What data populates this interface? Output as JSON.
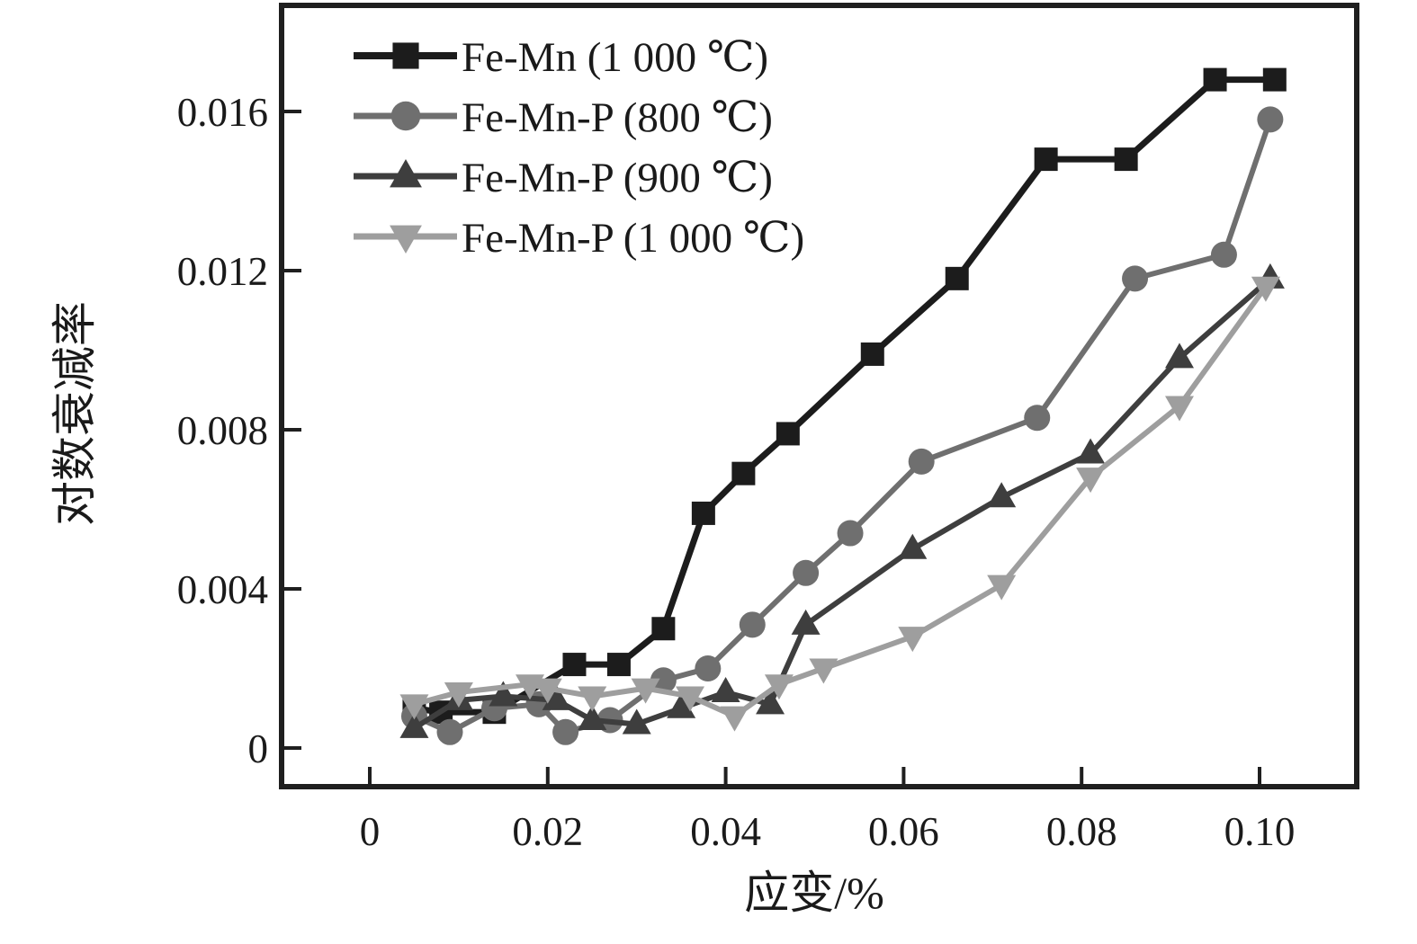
{
  "chart_data": {
    "type": "line",
    "title": "",
    "xlabel": "应变/%",
    "ylabel": "对数衰减率",
    "xlim": [
      -0.01,
      0.111
    ],
    "ylim": [
      -0.001,
      0.0187
    ],
    "grid": false,
    "legend_position": "top-left-inside",
    "xticks": {
      "values": [
        0,
        0.02,
        0.04,
        0.06,
        0.08,
        0.1
      ],
      "labels": [
        "0",
        "0.02",
        "0.04",
        "0.06",
        "0.08",
        "0.10"
      ]
    },
    "yticks": {
      "values": [
        0,
        0.004,
        0.008,
        0.012,
        0.016
      ],
      "labels": [
        "0",
        "0.004",
        "0.008",
        "0.012",
        "0.016"
      ]
    },
    "series": [
      {
        "name": "Fe-Mn (1 000 ℃)",
        "marker": "square",
        "color": "#1c1c1c",
        "line_width": 7,
        "points": [
          [
            0.005,
            0.001
          ],
          [
            0.008,
            0.0009
          ],
          [
            0.014,
            0.0009
          ],
          [
            0.023,
            0.0021
          ],
          [
            0.028,
            0.0021
          ],
          [
            0.033,
            0.003
          ],
          [
            0.0375,
            0.0059
          ],
          [
            0.042,
            0.0069
          ],
          [
            0.047,
            0.0079
          ],
          [
            0.0565,
            0.0099
          ],
          [
            0.066,
            0.0118
          ],
          [
            0.076,
            0.0148
          ],
          [
            0.085,
            0.0148
          ],
          [
            0.095,
            0.0168
          ],
          [
            0.1017,
            0.0168
          ]
        ]
      },
      {
        "name": "Fe-Mn-P (800 ℃)",
        "marker": "circle",
        "color": "#6f6f6f",
        "line_width": 6,
        "points": [
          [
            0.005,
            0.0008
          ],
          [
            0.009,
            0.0004
          ],
          [
            0.014,
            0.001
          ],
          [
            0.019,
            0.0011
          ],
          [
            0.022,
            0.0004
          ],
          [
            0.027,
            0.0007
          ],
          [
            0.033,
            0.0017
          ],
          [
            0.038,
            0.002
          ],
          [
            0.043,
            0.0031
          ],
          [
            0.049,
            0.0044
          ],
          [
            0.054,
            0.0054
          ],
          [
            0.062,
            0.0072
          ],
          [
            0.075,
            0.0083
          ],
          [
            0.086,
            0.0118
          ],
          [
            0.096,
            0.0124
          ],
          [
            0.1012,
            0.0158
          ]
        ]
      },
      {
        "name": "Fe-Mn-P (900 ℃)",
        "marker": "triangle-up",
        "color": "#3e3e3e",
        "line_width": 6,
        "points": [
          [
            0.005,
            0.0005
          ],
          [
            0.01,
            0.0012
          ],
          [
            0.015,
            0.0013
          ],
          [
            0.021,
            0.0012
          ],
          [
            0.025,
            0.0007
          ],
          [
            0.03,
            0.0006
          ],
          [
            0.035,
            0.001
          ],
          [
            0.04,
            0.0014
          ],
          [
            0.045,
            0.0011
          ],
          [
            0.049,
            0.0031
          ],
          [
            0.061,
            0.005
          ],
          [
            0.071,
            0.0063
          ],
          [
            0.081,
            0.0074
          ],
          [
            0.091,
            0.0098
          ],
          [
            0.1012,
            0.0118
          ]
        ]
      },
      {
        "name": "Fe-Mn-P (1 000 ℃)",
        "marker": "triangle-down",
        "color": "#9e9e9e",
        "line_width": 6,
        "points": [
          [
            0.005,
            0.0011
          ],
          [
            0.01,
            0.0014
          ],
          [
            0.018,
            0.0016
          ],
          [
            0.02,
            0.0015
          ],
          [
            0.025,
            0.0013
          ],
          [
            0.031,
            0.0015
          ],
          [
            0.036,
            0.0013
          ],
          [
            0.041,
            0.0008
          ],
          [
            0.046,
            0.0016
          ],
          [
            0.051,
            0.002
          ],
          [
            0.061,
            0.0028
          ],
          [
            0.071,
            0.0041
          ],
          [
            0.081,
            0.0068
          ],
          [
            0.091,
            0.0086
          ],
          [
            0.1007,
            0.0116
          ]
        ]
      }
    ]
  }
}
